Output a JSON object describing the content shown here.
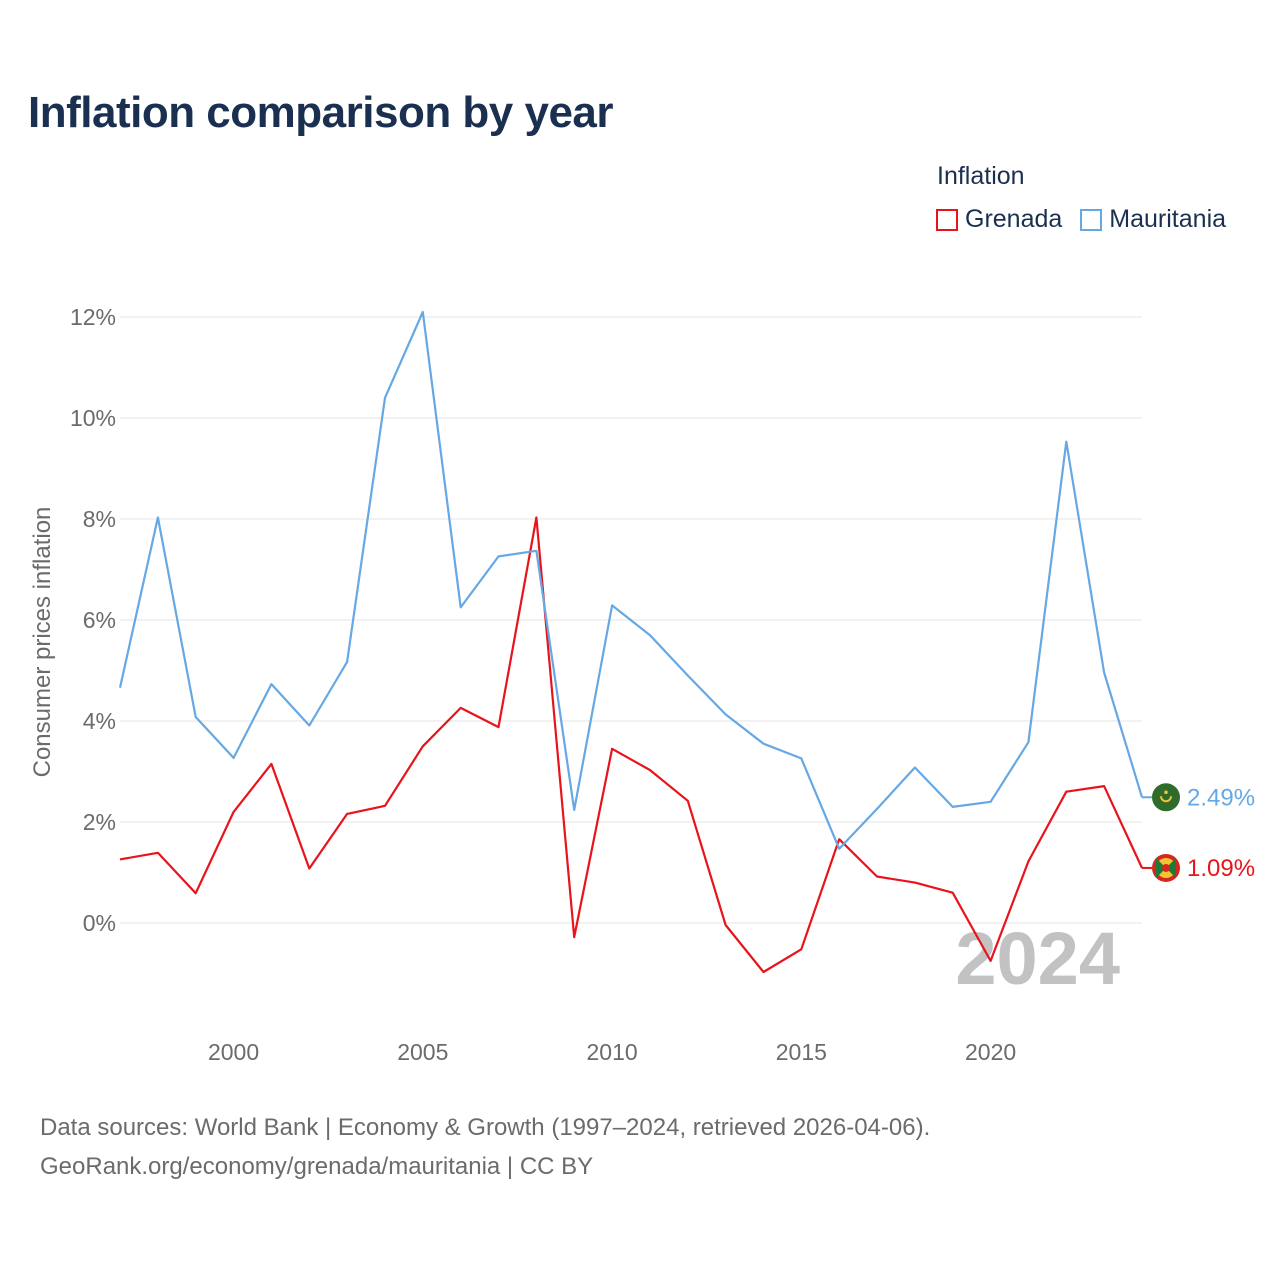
{
  "title": "Inflation comparison by year",
  "legend": {
    "title": "Inflation",
    "items": [
      {
        "label": "Grenada",
        "color": "#e8131b"
      },
      {
        "label": "Mauritania",
        "color": "#66a8e4"
      }
    ]
  },
  "source": {
    "line1": "Data sources: World Bank | Economy & Growth (1997–2024, retrieved 2026-04-06).",
    "line2": "GeoRank.org/economy/grenada/mauritania | CC BY"
  },
  "chart_data": {
    "type": "line",
    "title": "Inflation comparison by year",
    "xlabel": "",
    "ylabel": "Consumer prices inflation",
    "x": [
      1997,
      1998,
      1999,
      2000,
      2001,
      2002,
      2003,
      2004,
      2005,
      2006,
      2007,
      2008,
      2009,
      2010,
      2011,
      2012,
      2013,
      2014,
      2015,
      2016,
      2017,
      2018,
      2019,
      2020,
      2021,
      2022,
      2023,
      2024
    ],
    "xlim": [
      1997,
      2024
    ],
    "ylim": [
      -2,
      12
    ],
    "xticks": [
      2000,
      2005,
      2010,
      2015,
      2020
    ],
    "xtick_labels": [
      "2000",
      "2005",
      "2010",
      "2015",
      "2020"
    ],
    "yticks": [
      0,
      2,
      4,
      6,
      8,
      10,
      12
    ],
    "ytick_labels": [
      "0%",
      "2%",
      "4%",
      "6%",
      "8%",
      "10%",
      "12%"
    ],
    "grid": true,
    "watermark": "2024",
    "series": [
      {
        "name": "Grenada",
        "color": "#e8131b",
        "end_label": "1.09%",
        "values": [
          1.26,
          1.39,
          0.59,
          2.2,
          3.15,
          1.08,
          2.16,
          2.32,
          3.5,
          4.26,
          3.88,
          8.03,
          -0.28,
          3.45,
          3.03,
          2.42,
          -0.04,
          -0.97,
          -0.52,
          1.66,
          0.92,
          0.8,
          0.6,
          -0.75,
          1.22,
          2.6,
          2.71,
          1.09
        ]
      },
      {
        "name": "Mauritania",
        "color": "#66a8e4",
        "end_label": "2.49%",
        "values": [
          4.66,
          8.03,
          4.08,
          3.27,
          4.73,
          3.91,
          5.17,
          10.4,
          12.1,
          6.25,
          7.26,
          7.37,
          2.24,
          6.29,
          5.7,
          4.9,
          4.13,
          3.55,
          3.26,
          1.47,
          2.26,
          3.08,
          2.3,
          2.4,
          3.58,
          9.53,
          4.96,
          2.49
        ]
      }
    ]
  }
}
